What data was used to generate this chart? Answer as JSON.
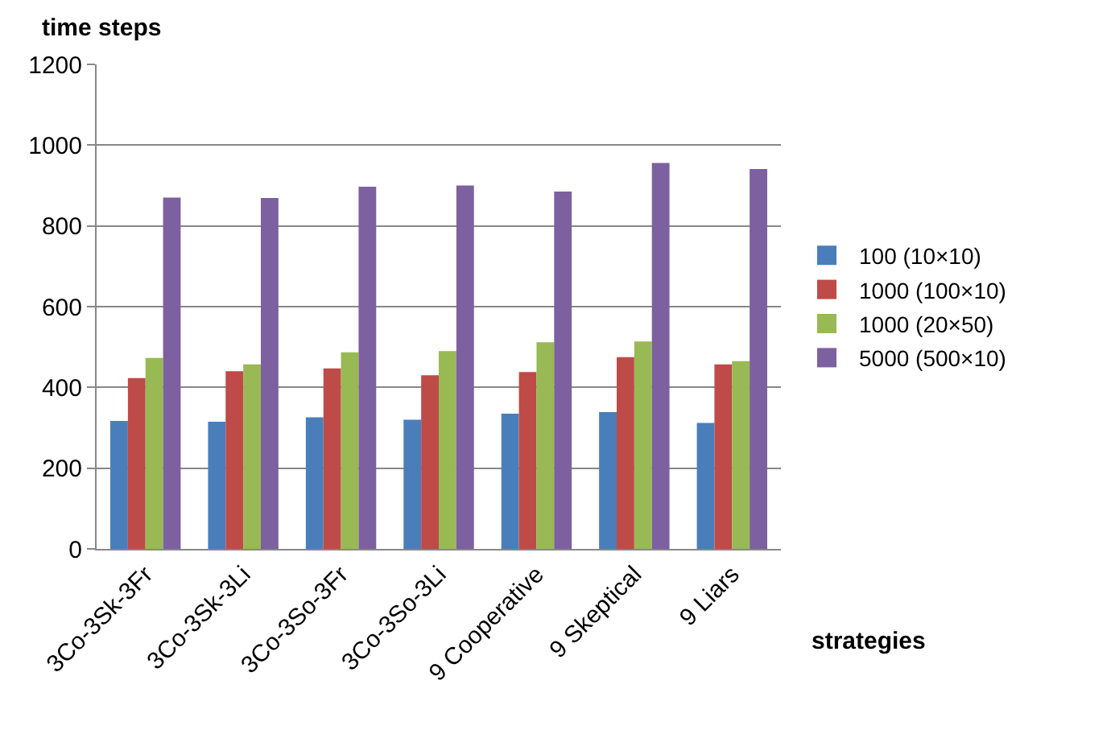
{
  "chart_data": {
    "type": "bar",
    "xlabel": "strategies",
    "ylabel": "time steps",
    "categories": [
      "3Co-3Sk-3Fr",
      "3Co-3Sk-3Li",
      "3Co-3So-3Fr",
      "3Co-3So-3Li",
      "9 Cooperative",
      "9 Skeptical",
      "9 Liars"
    ],
    "series": [
      {
        "name": "100 (10×10)",
        "color": "#4a7ebb",
        "values": [
          317,
          315,
          326,
          320,
          335,
          339,
          312
        ]
      },
      {
        "name": "1000 (100×10)",
        "color": "#be4b48",
        "values": [
          423,
          440,
          447,
          430,
          438,
          475,
          457
        ]
      },
      {
        "name": "1000 (20×50)",
        "color": "#98b954",
        "values": [
          473,
          457,
          487,
          490,
          512,
          514,
          465
        ]
      },
      {
        "name": "5000 (500×10)",
        "color": "#7d60a0",
        "values": [
          870,
          869,
          897,
          900,
          885,
          956,
          941
        ]
      }
    ],
    "ylim": [
      0,
      1200
    ],
    "yticks": [
      0,
      200,
      400,
      600,
      800,
      1000,
      1200
    ],
    "grid": "y",
    "legend": "right"
  }
}
